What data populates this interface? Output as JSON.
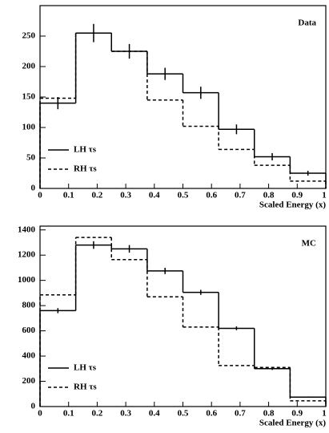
{
  "chart_data": [
    {
      "type": "histogram",
      "label": "Data",
      "xlabel": "Scaled Energy (x)",
      "bins": [
        0,
        0.125,
        0.25,
        0.375,
        0.5,
        0.625,
        0.75,
        0.875,
        1
      ],
      "xlim": [
        0,
        1
      ],
      "xticks": [
        0,
        0.1,
        0.2,
        0.3,
        0.4,
        0.5,
        0.6,
        0.7,
        0.8,
        0.9,
        1
      ],
      "ylim": [
        0,
        300
      ],
      "yticks": [
        0,
        50,
        100,
        150,
        200,
        250
      ],
      "series": [
        {
          "name": "LH τs",
          "color": "#000000",
          "linestyle": "solid",
          "values": [
            140,
            255,
            225,
            188,
            157,
            97,
            52,
            25
          ],
          "errors": [
            10,
            15,
            12,
            10,
            10,
            8,
            6,
            4
          ]
        },
        {
          "name": "RH τs",
          "color": "#000000",
          "linestyle": "dashed",
          "values": [
            148,
            255,
            225,
            145,
            102,
            64,
            38,
            12
          ]
        }
      ]
    },
    {
      "type": "histogram",
      "label": "MC",
      "xlabel": "Scaled Energy (x)",
      "bins": [
        0,
        0.125,
        0.25,
        0.375,
        0.5,
        0.625,
        0.75,
        0.875,
        1
      ],
      "xlim": [
        0,
        1
      ],
      "xticks": [
        0,
        0.1,
        0.2,
        0.3,
        0.4,
        0.5,
        0.6,
        0.7,
        0.8,
        0.9,
        1
      ],
      "ylim": [
        0,
        1430
      ],
      "yticks": [
        0,
        200,
        400,
        600,
        800,
        1000,
        1200,
        1400
      ],
      "series": [
        {
          "name": "LH τs",
          "color": "#000000",
          "linestyle": "solid",
          "values": [
            760,
            1280,
            1250,
            1075,
            905,
            620,
            300,
            75
          ],
          "errors": [
            20,
            30,
            30,
            25,
            20,
            15,
            10,
            5
          ]
        },
        {
          "name": "RH τs",
          "color": "#000000",
          "linestyle": "dashed",
          "values": [
            885,
            1340,
            1165,
            870,
            630,
            325,
            310,
            45
          ]
        }
      ]
    }
  ]
}
